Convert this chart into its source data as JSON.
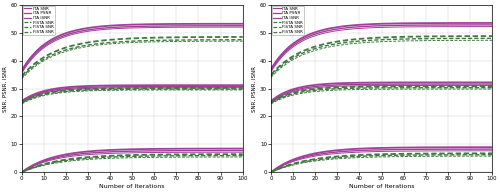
{
  "left": {
    "ita_curves": [
      {
        "start": 36.5,
        "end": 53.2,
        "rate": 0.08
      },
      {
        "start": 36.0,
        "end": 52.5,
        "rate": 0.08
      },
      {
        "start": 35.5,
        "end": 52.0,
        "rate": 0.08
      }
    ],
    "fista_curves": [
      {
        "start": 34.5,
        "end": 48.5,
        "rate": 0.065
      },
      {
        "start": 34.0,
        "end": 47.5,
        "rate": 0.065
      },
      {
        "start": 33.5,
        "end": 47.0,
        "rate": 0.065
      }
    ],
    "ita_mid": [
      {
        "start": 25.5,
        "end": 31.2,
        "rate": 0.1
      },
      {
        "start": 25.2,
        "end": 30.7,
        "rate": 0.1
      },
      {
        "start": 25.0,
        "end": 30.3,
        "rate": 0.1
      }
    ],
    "fista_mid": [
      {
        "start": 25.0,
        "end": 30.2,
        "rate": 0.09
      },
      {
        "start": 24.8,
        "end": 29.8,
        "rate": 0.09
      },
      {
        "start": 24.5,
        "end": 29.5,
        "rate": 0.09
      }
    ],
    "ita_bot": [
      {
        "start": 0.0,
        "end": 8.5,
        "rate": 0.07
      },
      {
        "start": 0.0,
        "end": 7.8,
        "rate": 0.07
      },
      {
        "start": 0.0,
        "end": 7.2,
        "rate": 0.07
      }
    ],
    "fista_bot": [
      {
        "start": 0.0,
        "end": 6.5,
        "rate": 0.06
      },
      {
        "start": 0.0,
        "end": 6.0,
        "rate": 0.06
      },
      {
        "start": 0.0,
        "end": 5.5,
        "rate": 0.06
      }
    ]
  },
  "right": {
    "ita_curves": [
      {
        "start": 37.0,
        "end": 53.5,
        "rate": 0.08
      },
      {
        "start": 36.5,
        "end": 52.8,
        "rate": 0.08
      },
      {
        "start": 36.0,
        "end": 52.2,
        "rate": 0.08
      }
    ],
    "fista_curves": [
      {
        "start": 35.0,
        "end": 48.8,
        "rate": 0.065
      },
      {
        "start": 34.5,
        "end": 48.0,
        "rate": 0.065
      },
      {
        "start": 34.0,
        "end": 47.3,
        "rate": 0.065
      }
    ],
    "ita_mid": [
      {
        "start": 25.5,
        "end": 32.2,
        "rate": 0.1
      },
      {
        "start": 25.2,
        "end": 31.6,
        "rate": 0.1
      },
      {
        "start": 25.0,
        "end": 31.1,
        "rate": 0.1
      }
    ],
    "fista_mid": [
      {
        "start": 25.0,
        "end": 30.8,
        "rate": 0.09
      },
      {
        "start": 24.8,
        "end": 30.3,
        "rate": 0.09
      },
      {
        "start": 24.5,
        "end": 29.8,
        "rate": 0.09
      }
    ],
    "ita_bot": [
      {
        "start": 0.0,
        "end": 9.0,
        "rate": 0.07
      },
      {
        "start": 0.0,
        "end": 8.3,
        "rate": 0.07
      },
      {
        "start": 0.0,
        "end": 7.7,
        "rate": 0.07
      }
    ],
    "fista_bot": [
      {
        "start": 0.0,
        "end": 6.8,
        "rate": 0.06
      },
      {
        "start": 0.0,
        "end": 6.3,
        "rate": 0.06
      },
      {
        "start": 0.0,
        "end": 5.8,
        "rate": 0.06
      }
    ]
  },
  "legend_labels_ita": [
    "ITA SNR",
    "ITA PSNR",
    "ITA ISNR"
  ],
  "legend_labels_fista": [
    "FISTA SNR",
    "FISTA SNR",
    "FISTA SNR"
  ],
  "ita_color": "#a0409a",
  "fista_color": "#3d7a3d",
  "xlabel": "Number of Iterations",
  "ylabel": "SNR, PSNR, ISNR",
  "ylim": [
    0,
    60
  ],
  "xlim": [
    0,
    100
  ],
  "xticks": [
    0,
    10,
    20,
    30,
    40,
    50,
    60,
    70,
    80,
    90,
    100
  ],
  "yticks": [
    0,
    10,
    20,
    30,
    40,
    50,
    60
  ],
  "n_iter": 100
}
